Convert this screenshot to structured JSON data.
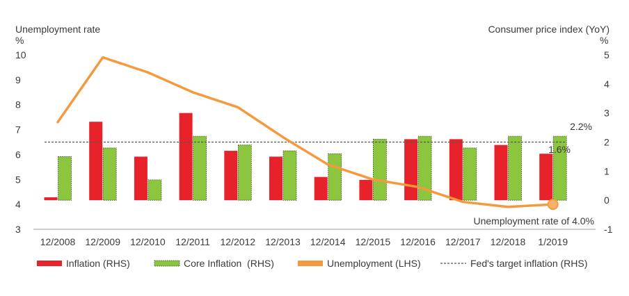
{
  "chart_data": {
    "type": "bar",
    "categories": [
      "12/2008",
      "12/2009",
      "12/2010",
      "12/2011",
      "12/2012",
      "12/2013",
      "12/2014",
      "12/2015",
      "12/2016",
      "12/2017",
      "12/2018",
      "1/2019"
    ],
    "series": [
      {
        "name": "Inflation (RHS)",
        "axis": "right",
        "kind": "bar",
        "color": "#e8222b",
        "values": [
          0.1,
          2.7,
          1.5,
          3.0,
          1.7,
          1.5,
          0.8,
          0.7,
          2.1,
          2.1,
          1.9,
          1.6
        ]
      },
      {
        "name": "Core Inflation  (RHS)",
        "axis": "right",
        "kind": "bar",
        "color": "#8cc63f",
        "values": [
          1.5,
          1.8,
          0.7,
          2.2,
          1.9,
          1.7,
          1.6,
          2.1,
          2.2,
          1.8,
          2.2,
          2.2
        ]
      },
      {
        "name": "Unemployment (LHS)",
        "axis": "left",
        "kind": "line",
        "color": "#f39a3e",
        "values": [
          7.3,
          9.9,
          9.3,
          8.5,
          7.9,
          6.7,
          5.6,
          5.0,
          4.7,
          4.1,
          3.9,
          4.0
        ]
      },
      {
        "name": "Fed's target inflation (RHS)",
        "axis": "right",
        "kind": "reference",
        "color": "#555555",
        "value": 2.0
      }
    ],
    "left_axis": {
      "title": "Unemployment rate",
      "unit": "%",
      "ylim": [
        3,
        10
      ],
      "ticks": [
        "3",
        "4",
        "5",
        "6",
        "7",
        "8",
        "9",
        "10"
      ]
    },
    "right_axis": {
      "title": "Consumer price index (YoY)",
      "unit": "%",
      "ylim": [
        -1,
        5
      ],
      "ticks": [
        "-1",
        "0",
        "1",
        "2",
        "3",
        "4",
        "5"
      ]
    },
    "annotations": {
      "core_last": "2.2%",
      "inflation_last": "1.6%",
      "unemployment_last": "Unemployment rate of 4.0%"
    },
    "legend_position": "bottom",
    "grid": false
  }
}
